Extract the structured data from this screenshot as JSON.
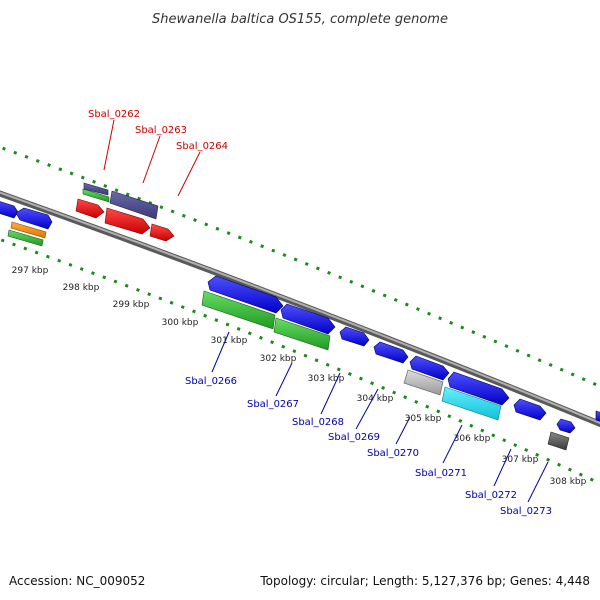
{
  "title": "Shewanella baltica OS155, complete genome",
  "footer": {
    "accession": "Accession: NC_009052",
    "summary": "Topology: circular; Length: 5,127,376 bp; Genes: 4,448"
  },
  "kbp_ticks": [
    "297 kbp",
    "298 kbp",
    "299 kbp",
    "300 kbp",
    "301 kbp",
    "302 kbp",
    "303 kbp",
    "304 kbp",
    "305 kbp",
    "306 kbp",
    "307 kbp",
    "308 kbp"
  ],
  "gene_labels_top": [
    "Sbal_0262",
    "Sbal_0263",
    "Sbal_0264"
  ],
  "gene_labels_bottom": [
    "Sbal_0266",
    "Sbal_0267",
    "Sbal_0268",
    "Sbal_0269",
    "Sbal_0270",
    "Sbal_0271",
    "Sbal_0272",
    "Sbal_0273"
  ],
  "colors": {
    "backbone": "#888888",
    "tick_green": "#1a8a1a",
    "blue_gene": "#1a1aee",
    "red_gene": "#ee1111",
    "green_gene": "#33bb33",
    "slate_gene": "#4a4a8a",
    "cyan_gene": "#22ddee",
    "grey_gene": "#aaaaaa",
    "dark_grey_gene": "#555555",
    "orange_gene": "#ee8811",
    "label_red": "#cc0000",
    "label_blue": "#0000aa"
  }
}
